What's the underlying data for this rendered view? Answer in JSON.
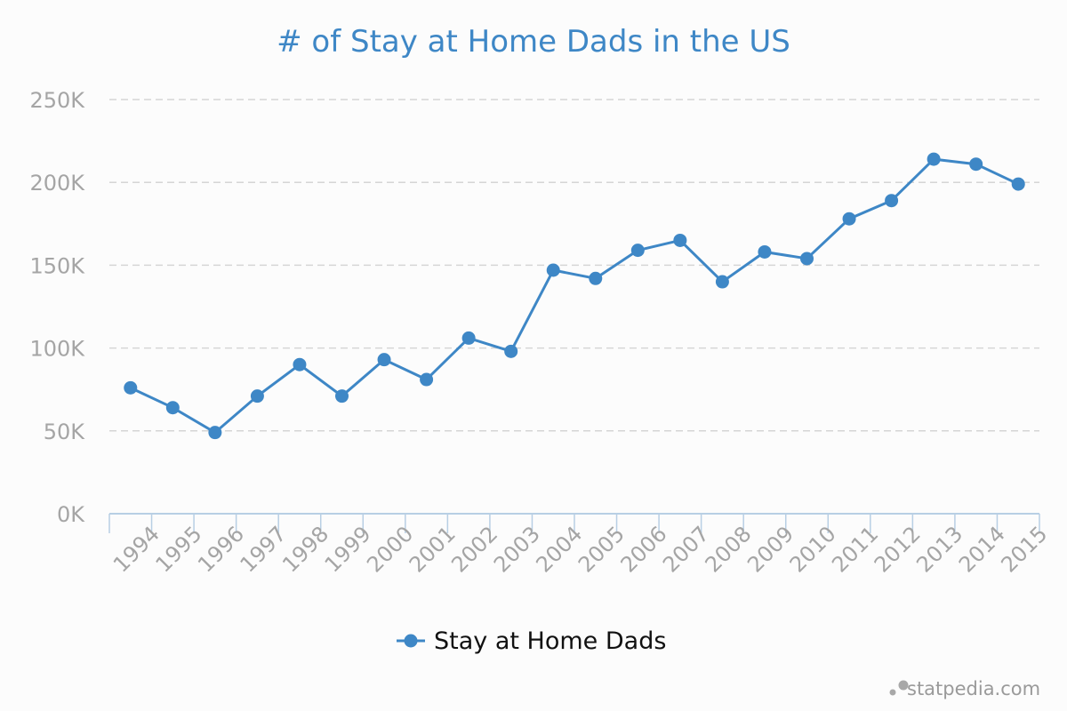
{
  "chart_data": {
    "type": "line",
    "title": "# of Stay at Home Dads in the US",
    "xlabel": "",
    "ylabel": "",
    "x": [
      "1994",
      "1995",
      "1996",
      "1997",
      "1998",
      "1999",
      "2000",
      "2001",
      "2002",
      "2003",
      "2004",
      "2005",
      "2006",
      "2007",
      "2008",
      "2009",
      "2010",
      "2011",
      "2012",
      "2013",
      "2014",
      "2015"
    ],
    "series": [
      {
        "name": "Stay at Home Dads",
        "values": [
          76000,
          64000,
          49000,
          71000,
          90000,
          71000,
          93000,
          81000,
          106000,
          98000,
          147000,
          142000,
          159000,
          165000,
          140000,
          158000,
          154000,
          178000,
          189000,
          214000,
          211000,
          199000
        ]
      }
    ],
    "ylim": [
      0,
      250000
    ],
    "yticks": [
      0,
      50000,
      100000,
      150000,
      200000,
      250000
    ],
    "ytick_labels": [
      "0K",
      "50K",
      "100K",
      "150K",
      "200K",
      "250K"
    ],
    "grid": true,
    "legend_position": "bottom",
    "colors": {
      "series": "#3e87c6",
      "title": "#3e87c6",
      "grid": "#d5d5d5",
      "axis": "#b8cfe4",
      "tick_text": "#a5a5a5"
    }
  },
  "branding": {
    "text": "statpedia.com"
  }
}
